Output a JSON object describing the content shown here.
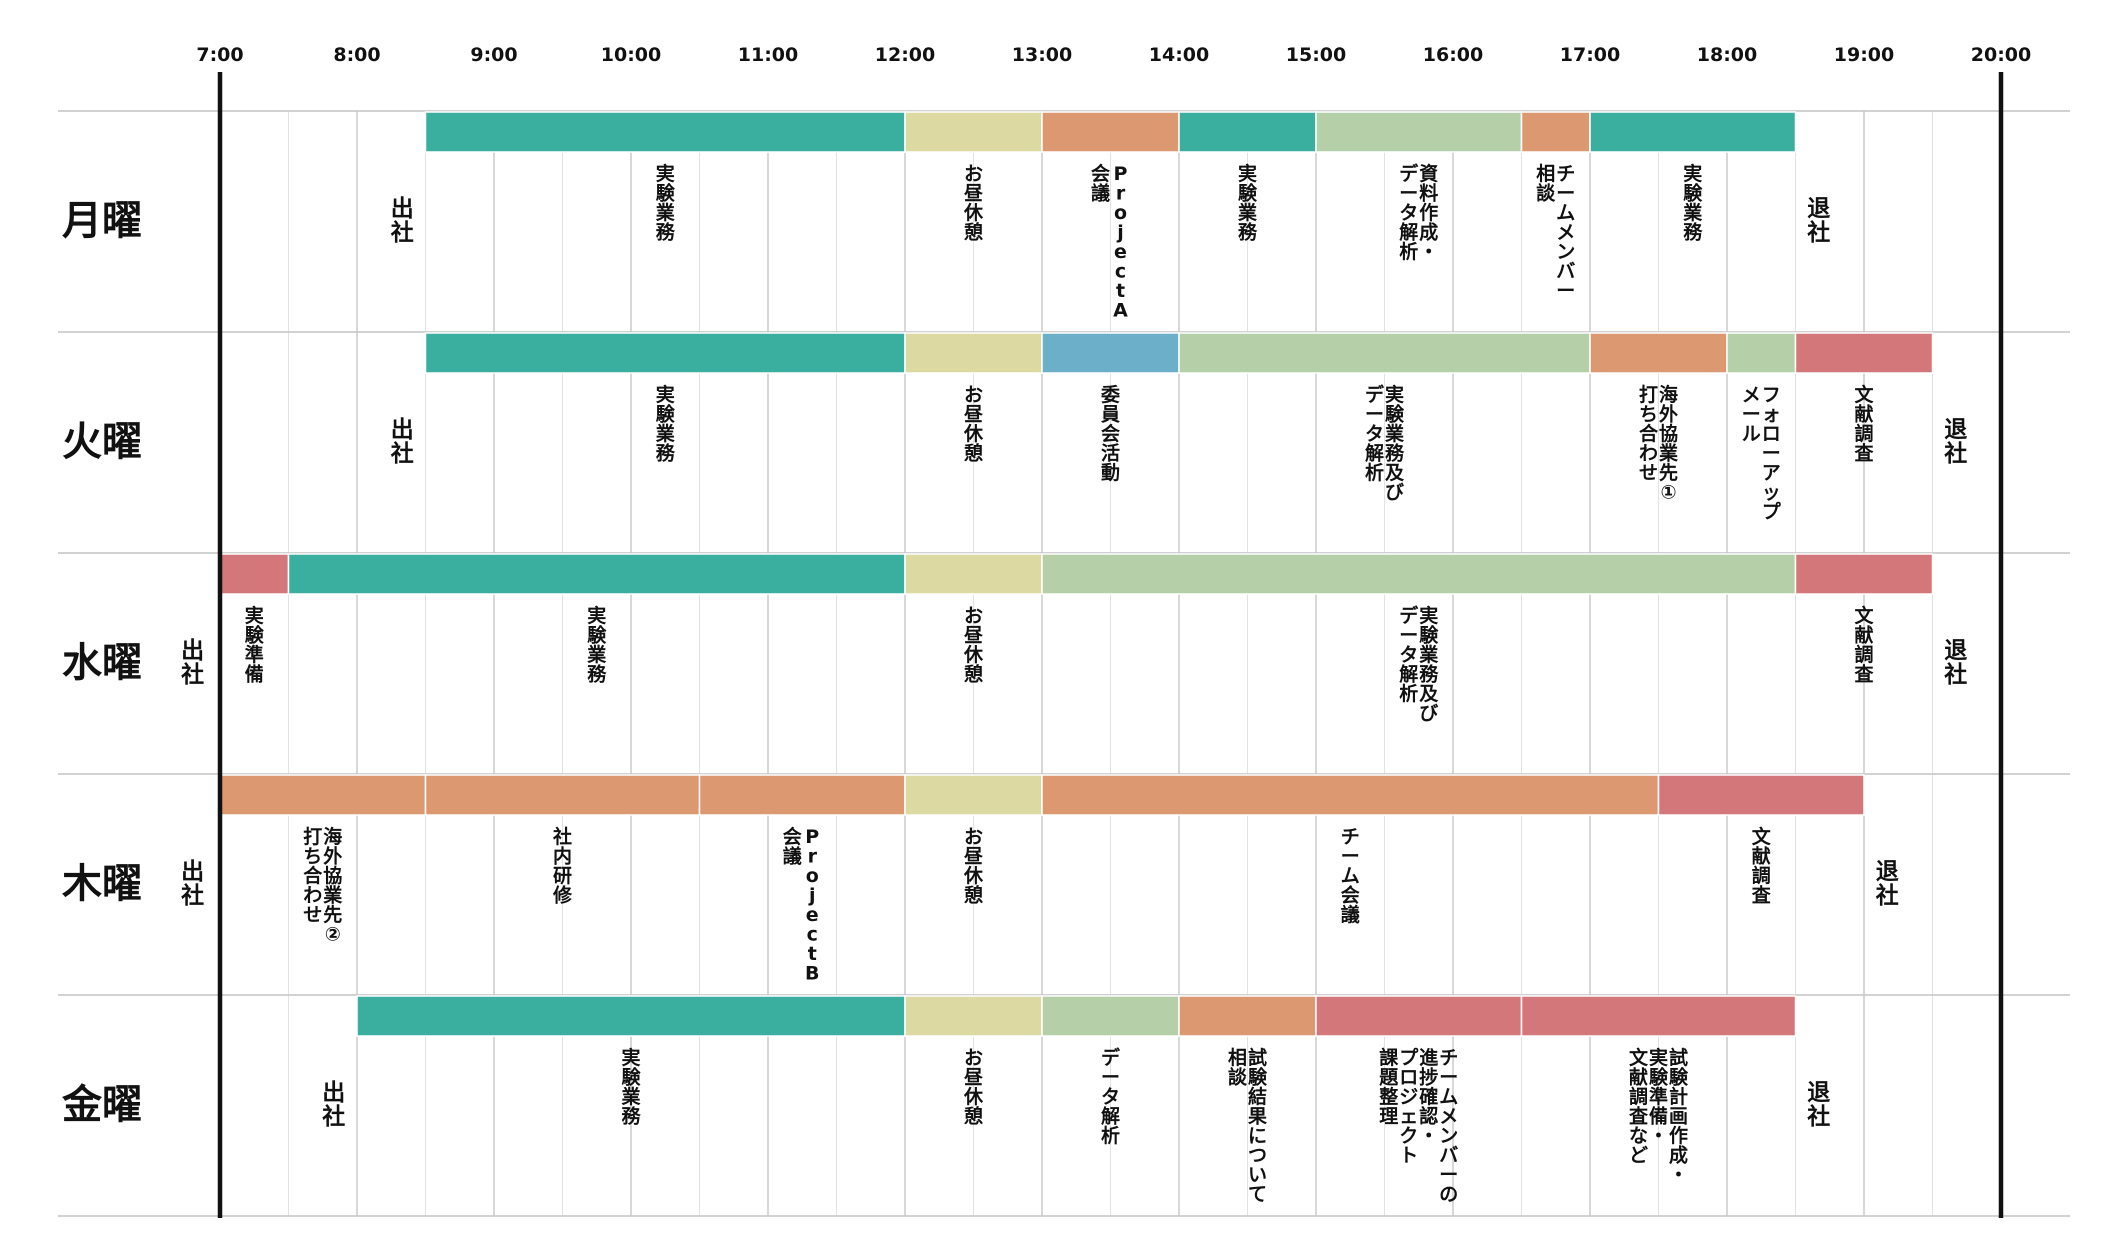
{
  "chart_data": {
    "type": "gantt",
    "time_range": [
      "7:00",
      "20:00"
    ],
    "hour_ticks": [
      "7:00",
      "8:00",
      "9:00",
      "10:00",
      "11:00",
      "12:00",
      "13:00",
      "14:00",
      "15:00",
      "16:00",
      "17:00",
      "18:00",
      "19:00",
      "20:00"
    ],
    "colors": {
      "teal": "#3aaf9f",
      "break": "#ddd9a3",
      "orange": "#dc9870",
      "green": "#b5cfa8",
      "red": "#d4777a",
      "blue": "#6bafc8"
    },
    "days": [
      {
        "name": "月曜",
        "arrive": {
          "label": "出社",
          "time": 8.33
        },
        "leave": {
          "label": "退社",
          "time": 18.67
        },
        "bars": [
          {
            "start": 8.5,
            "end": 12,
            "color": "teal"
          },
          {
            "start": 12,
            "end": 13,
            "color": "break"
          },
          {
            "start": 13,
            "end": 14,
            "color": "orange"
          },
          {
            "start": 14,
            "end": 15,
            "color": "teal"
          },
          {
            "start": 15,
            "end": 16.5,
            "color": "green"
          },
          {
            "start": 16.5,
            "end": 17,
            "color": "orange"
          },
          {
            "start": 17,
            "end": 18.5,
            "color": "teal"
          }
        ],
        "labels": [
          {
            "time": 10.25,
            "lines": [
              "実験業務"
            ]
          },
          {
            "time": 12.5,
            "lines": [
              "お昼休憩"
            ]
          },
          {
            "time": 13.5,
            "lines": [
              "ProjectA",
              "会議"
            ]
          },
          {
            "time": 14.5,
            "lines": [
              "実験業務"
            ]
          },
          {
            "time": 15.75,
            "lines": [
              "資料作成・",
              "データ解析"
            ]
          },
          {
            "time": 16.75,
            "lines": [
              "チームメンバー",
              "相談"
            ]
          },
          {
            "time": 17.75,
            "lines": [
              "実験業務"
            ]
          }
        ]
      },
      {
        "name": "火曜",
        "arrive": {
          "label": "出社",
          "time": 8.33
        },
        "leave": {
          "label": "退社",
          "time": 19.67
        },
        "bars": [
          {
            "start": 8.5,
            "end": 12,
            "color": "teal"
          },
          {
            "start": 12,
            "end": 13,
            "color": "break"
          },
          {
            "start": 13,
            "end": 14,
            "color": "blue"
          },
          {
            "start": 14,
            "end": 17,
            "color": "green"
          },
          {
            "start": 17,
            "end": 18,
            "color": "orange"
          },
          {
            "start": 18,
            "end": 18.5,
            "color": "green"
          },
          {
            "start": 18.5,
            "end": 19.5,
            "color": "red"
          }
        ],
        "labels": [
          {
            "time": 10.25,
            "lines": [
              "実験業務"
            ]
          },
          {
            "time": 12.5,
            "lines": [
              "お昼休憩"
            ]
          },
          {
            "time": 13.5,
            "lines": [
              "委員会活動"
            ]
          },
          {
            "time": 15.5,
            "lines": [
              "実験業務及び",
              "データ解析"
            ]
          },
          {
            "time": 17.5,
            "lines": [
              "海外協業先①",
              "打ち合わせ"
            ]
          },
          {
            "time": 18.25,
            "lines": [
              "フォローアップ",
              "メール"
            ]
          },
          {
            "time": 19.0,
            "lines": [
              "文献調査"
            ]
          }
        ]
      },
      {
        "name": "水曜",
        "arrive": {
          "label": "出社",
          "time": 6.8
        },
        "leave": {
          "label": "退社",
          "time": 19.67
        },
        "bars": [
          {
            "start": 7.0,
            "end": 7.5,
            "color": "red"
          },
          {
            "start": 7.5,
            "end": 12,
            "color": "teal"
          },
          {
            "start": 12,
            "end": 13,
            "color": "break"
          },
          {
            "start": 13,
            "end": 18.5,
            "color": "green"
          },
          {
            "start": 18.5,
            "end": 19.5,
            "color": "red"
          }
        ],
        "labels": [
          {
            "time": 7.25,
            "lines": [
              "実験準備"
            ]
          },
          {
            "time": 9.75,
            "lines": [
              "実験業務"
            ]
          },
          {
            "time": 12.5,
            "lines": [
              "お昼休憩"
            ]
          },
          {
            "time": 15.75,
            "lines": [
              "実験業務及び",
              "データ解析"
            ]
          },
          {
            "time": 19.0,
            "lines": [
              "文献調査"
            ]
          }
        ]
      },
      {
        "name": "木曜",
        "arrive": {
          "label": "出社",
          "time": 6.8
        },
        "leave": {
          "label": "退社",
          "time": 19.17
        },
        "bars": [
          {
            "start": 7.0,
            "end": 8.5,
            "color": "orange"
          },
          {
            "start": 8.5,
            "end": 10.5,
            "color": "orange"
          },
          {
            "start": 10.5,
            "end": 12,
            "color": "orange"
          },
          {
            "start": 12,
            "end": 13,
            "color": "break"
          },
          {
            "start": 13,
            "end": 17.5,
            "color": "orange"
          },
          {
            "start": 17.5,
            "end": 19,
            "color": "red"
          }
        ],
        "labels": [
          {
            "time": 7.75,
            "lines": [
              "海外協業先②",
              "打ち合わせ"
            ]
          },
          {
            "time": 9.5,
            "lines": [
              "社内研修"
            ]
          },
          {
            "time": 11.25,
            "lines": [
              "ProjectB",
              "会議"
            ]
          },
          {
            "time": 12.5,
            "lines": [
              "お昼休憩"
            ]
          },
          {
            "time": 15.25,
            "lines": [
              "チーム会議"
            ]
          },
          {
            "time": 18.25,
            "lines": [
              "文献調査"
            ]
          }
        ]
      },
      {
        "name": "金曜",
        "arrive": {
          "label": "出社",
          "time": 7.83
        },
        "leave": {
          "label": "退社",
          "time": 18.67
        },
        "bars": [
          {
            "start": 8.0,
            "end": 12,
            "color": "teal"
          },
          {
            "start": 12,
            "end": 13,
            "color": "break"
          },
          {
            "start": 13,
            "end": 14,
            "color": "green"
          },
          {
            "start": 14,
            "end": 15,
            "color": "orange"
          },
          {
            "start": 15,
            "end": 16.5,
            "color": "red"
          },
          {
            "start": 16.5,
            "end": 18.5,
            "color": "red"
          }
        ],
        "labels": [
          {
            "time": 10.0,
            "lines": [
              "実験業務"
            ]
          },
          {
            "time": 12.5,
            "lines": [
              "お昼休憩"
            ]
          },
          {
            "time": 13.5,
            "lines": [
              "データ解析"
            ]
          },
          {
            "time": 14.5,
            "lines": [
              "試験結果について",
              "相談"
            ]
          },
          {
            "time": 15.75,
            "lines": [
              "チームメンバーの",
              "進捗確認・",
              "プロジェクト",
              "課題整理"
            ]
          },
          {
            "time": 17.5,
            "lines": [
              "試験計画作成・",
              "実験準備・",
              "文献調査など"
            ]
          }
        ]
      }
    ]
  }
}
